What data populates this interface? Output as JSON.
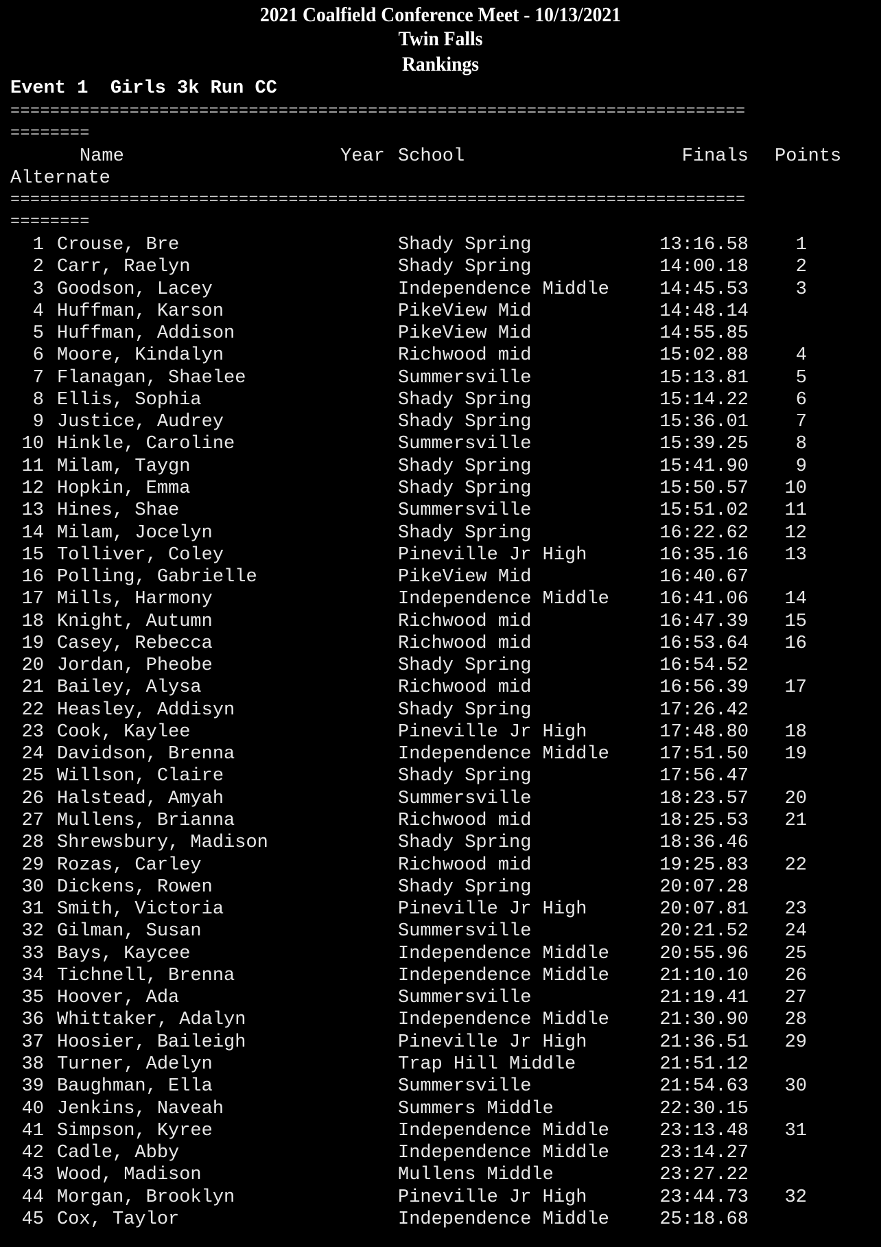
{
  "header": {
    "meet_title": "2021 Coalfield Conference Meet - 10/13/2021",
    "location": "Twin Falls",
    "report": "Rankings",
    "event": "Event 1  Girls 3k Run CC"
  },
  "rule_line": "==========================================================================",
  "rule_wrap": "========",
  "columns": {
    "name": "Name",
    "year": "Year",
    "school": "School",
    "finals": "Finals",
    "points": "Points",
    "alternate": "Alternate"
  },
  "results": [
    {
      "rank": "1",
      "name": "Crouse, Bre",
      "school": "Shady Spring",
      "time": "13:16.58",
      "points": "1"
    },
    {
      "rank": "2",
      "name": "Carr, Raelyn",
      "school": "Shady Spring",
      "time": "14:00.18",
      "points": "2"
    },
    {
      "rank": "3",
      "name": "Goodson, Lacey",
      "school": "Independence Middle",
      "time": "14:45.53",
      "points": "3"
    },
    {
      "rank": "4",
      "name": "Huffman, Karson",
      "school": "PikeView Mid",
      "time": "14:48.14",
      "points": ""
    },
    {
      "rank": "5",
      "name": "Huffman, Addison",
      "school": "PikeView Mid",
      "time": "14:55.85",
      "points": ""
    },
    {
      "rank": "6",
      "name": "Moore, Kindalyn",
      "school": "Richwood mid",
      "time": "15:02.88",
      "points": "4"
    },
    {
      "rank": "7",
      "name": "Flanagan, Shaelee",
      "school": "Summersville",
      "time": "15:13.81",
      "points": "5"
    },
    {
      "rank": "8",
      "name": "Ellis, Sophia",
      "school": "Shady Spring",
      "time": "15:14.22",
      "points": "6"
    },
    {
      "rank": "9",
      "name": "Justice, Audrey",
      "school": "Shady Spring",
      "time": "15:36.01",
      "points": "7"
    },
    {
      "rank": "10",
      "name": "Hinkle, Caroline",
      "school": "Summersville",
      "time": "15:39.25",
      "points": "8"
    },
    {
      "rank": "11",
      "name": "Milam, Taygn",
      "school": "Shady Spring",
      "time": "15:41.90",
      "points": "9"
    },
    {
      "rank": "12",
      "name": "Hopkin, Emma",
      "school": "Shady Spring",
      "time": "15:50.57",
      "points": "10"
    },
    {
      "rank": "13",
      "name": "Hines, Shae",
      "school": "Summersville",
      "time": "15:51.02",
      "points": "11"
    },
    {
      "rank": "14",
      "name": "Milam, Jocelyn",
      "school": "Shady Spring",
      "time": "16:22.62",
      "points": "12"
    },
    {
      "rank": "15",
      "name": "Tolliver, Coley",
      "school": "Pineville Jr High",
      "time": "16:35.16",
      "points": "13"
    },
    {
      "rank": "16",
      "name": "Polling, Gabrielle",
      "school": "PikeView Mid",
      "time": "16:40.67",
      "points": ""
    },
    {
      "rank": "17",
      "name": "Mills, Harmony",
      "school": "Independence Middle",
      "time": "16:41.06",
      "points": "14"
    },
    {
      "rank": "18",
      "name": "Knight, Autumn",
      "school": "Richwood mid",
      "time": "16:47.39",
      "points": "15"
    },
    {
      "rank": "19",
      "name": "Casey, Rebecca",
      "school": "Richwood mid",
      "time": "16:53.64",
      "points": "16"
    },
    {
      "rank": "20",
      "name": "Jordan, Pheobe",
      "school": "Shady Spring",
      "time": "16:54.52",
      "points": ""
    },
    {
      "rank": "21",
      "name": "Bailey, Alysa",
      "school": "Richwood mid",
      "time": "16:56.39",
      "points": "17"
    },
    {
      "rank": "22",
      "name": "Heasley, Addisyn",
      "school": "Shady Spring",
      "time": "17:26.42",
      "points": ""
    },
    {
      "rank": "23",
      "name": "Cook, Kaylee",
      "school": "Pineville Jr High",
      "time": "17:48.80",
      "points": "18"
    },
    {
      "rank": "24",
      "name": "Davidson, Brenna",
      "school": "Independence Middle",
      "time": "17:51.50",
      "points": "19"
    },
    {
      "rank": "25",
      "name": "Willson, Claire",
      "school": "Shady Spring",
      "time": "17:56.47",
      "points": ""
    },
    {
      "rank": "26",
      "name": "Halstead, Amyah",
      "school": "Summersville",
      "time": "18:23.57",
      "points": "20"
    },
    {
      "rank": "27",
      "name": "Mullens, Brianna",
      "school": "Richwood mid",
      "time": "18:25.53",
      "points": "21"
    },
    {
      "rank": "28",
      "name": "Shrewsbury, Madison",
      "school": "Shady Spring",
      "time": "18:36.46",
      "points": ""
    },
    {
      "rank": "29",
      "name": "Rozas, Carley",
      "school": "Richwood mid",
      "time": "19:25.83",
      "points": "22"
    },
    {
      "rank": "30",
      "name": "Dickens, Rowen",
      "school": "Shady Spring",
      "time": "20:07.28",
      "points": ""
    },
    {
      "rank": "31",
      "name": "Smith, Victoria",
      "school": "Pineville Jr High",
      "time": "20:07.81",
      "points": "23"
    },
    {
      "rank": "32",
      "name": "Gilman, Susan",
      "school": "Summersville",
      "time": "20:21.52",
      "points": "24"
    },
    {
      "rank": "33",
      "name": "Bays, Kaycee",
      "school": "Independence Middle",
      "time": "20:55.96",
      "points": "25"
    },
    {
      "rank": "34",
      "name": "Tichnell, Brenna",
      "school": "Independence Middle",
      "time": "21:10.10",
      "points": "26"
    },
    {
      "rank": "35",
      "name": "Hoover, Ada",
      "school": "Summersville",
      "time": "21:19.41",
      "points": "27"
    },
    {
      "rank": "36",
      "name": "Whittaker, Adalyn",
      "school": "Independence Middle",
      "time": "21:30.90",
      "points": "28"
    },
    {
      "rank": "37",
      "name": "Hoosier, Baileigh",
      "school": "Pineville Jr High",
      "time": "21:36.51",
      "points": "29"
    },
    {
      "rank": "38",
      "name": "Turner, Adelyn",
      "school": "Trap Hill Middle",
      "time": "21:51.12",
      "points": ""
    },
    {
      "rank": "39",
      "name": "Baughman, Ella",
      "school": "Summersville",
      "time": "21:54.63",
      "points": "30"
    },
    {
      "rank": "40",
      "name": "Jenkins, Naveah",
      "school": "Summers Middle",
      "time": "22:30.15",
      "points": ""
    },
    {
      "rank": "41",
      "name": "Simpson, Kyree",
      "school": "Independence Middle",
      "time": "23:13.48",
      "points": "31"
    },
    {
      "rank": "42",
      "name": "Cadle, Abby",
      "school": "Independence Middle",
      "time": "23:14.27",
      "points": ""
    },
    {
      "rank": "43",
      "name": "Wood, Madison",
      "school": "Mullens Middle",
      "time": "23:27.22",
      "points": ""
    },
    {
      "rank": "44",
      "name": "Morgan, Brooklyn",
      "school": "Pineville Jr High",
      "time": "23:44.73",
      "points": "32"
    },
    {
      "rank": "45",
      "name": "Cox, Taylor",
      "school": "Independence Middle",
      "time": "25:18.68",
      "points": ""
    }
  ]
}
